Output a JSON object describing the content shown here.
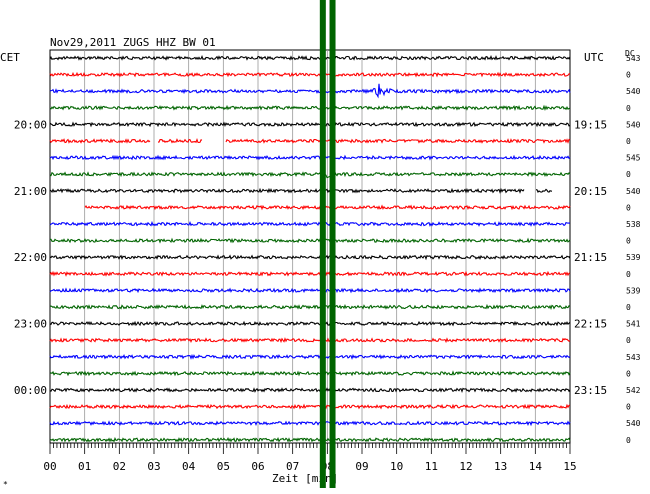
{
  "chart_data": {
    "type": "line",
    "title": "Nov29,2011   ZUGS HHZ BW 01",
    "xlabel": "Zeit [min]",
    "left_axis_title": "CET",
    "right_axis_title": "UTC",
    "corner_label": "DC",
    "xlim": [
      0,
      15
    ],
    "x_ticks": [
      "00",
      "01",
      "02",
      "03",
      "04",
      "05",
      "06",
      "07",
      "08",
      "09",
      "10",
      "11",
      "12",
      "13",
      "14",
      "15"
    ],
    "left_hour_labels": [
      "20:00",
      "21:00",
      "22:00",
      "23:00",
      "00:00"
    ],
    "right_hour_labels": [
      "19:15",
      "20:15",
      "21:15",
      "22:15",
      "23:15"
    ],
    "hour_label_trace_index": [
      4,
      8,
      12,
      16,
      20
    ],
    "trace_colors": [
      "#000000",
      "#ff0000",
      "#0000ff",
      "#006400"
    ],
    "dc_values": [
      "543",
      "0",
      "540",
      "0",
      "540",
      "0",
      "545",
      "0",
      "540",
      "0",
      "538",
      "0",
      "539",
      "0",
      "539",
      "0",
      "541",
      "0",
      "543",
      "0",
      "542",
      "0",
      "540",
      "0"
    ],
    "gaps": [
      {
        "trace": 5,
        "from": 2.9,
        "to": 3.1
      },
      {
        "trace": 5,
        "from": 4.4,
        "to": 5.05
      },
      {
        "trace": 8,
        "from": 13.7,
        "to": 14.0
      },
      {
        "trace": 8,
        "from": 14.5,
        "to": 15.0
      },
      {
        "trace": 9,
        "from": 0.0,
        "to": 1.0
      }
    ],
    "events": [
      {
        "trace": 2,
        "at": 9.5,
        "amplitude": "large"
      },
      {
        "trace": 7,
        "at": 8.0,
        "amplitude": "medium"
      }
    ],
    "markers": [
      {
        "x": 7.87,
        "color": "#006400"
      },
      {
        "x": 8.15,
        "color": "#006400"
      }
    ],
    "footer_mark": "*"
  }
}
